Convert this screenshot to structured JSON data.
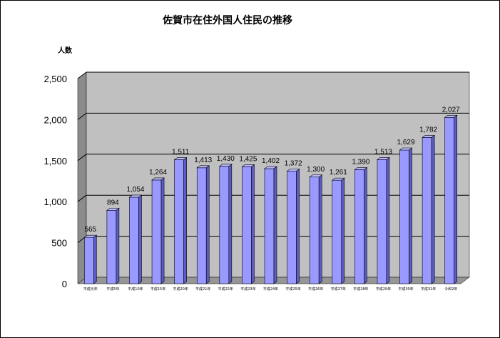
{
  "chart_data": {
    "type": "bar",
    "title": "佐賀市在住外国人住民の推移",
    "ylabel": "人数",
    "xlabel": "",
    "ylim": [
      0,
      2500
    ],
    "yticks": [
      "0",
      "500",
      "1,000",
      "1,500",
      "2,000",
      "2,500"
    ],
    "grid": true,
    "categories": [
      "平成元年",
      "平成5年",
      "平成10年",
      "平成15年",
      "平成20年",
      "平成21年",
      "平成22年",
      "平成23年",
      "平成24年",
      "平成25年",
      "平成26年",
      "平成27年",
      "平成28年",
      "平成29年",
      "平成30年",
      "平成31年",
      "令和2年"
    ],
    "values": [
      565,
      894,
      1054,
      1264,
      1511,
      1413,
      1430,
      1425,
      1402,
      1372,
      1300,
      1261,
      1390,
      1513,
      1629,
      1782,
      2027
    ],
    "value_labels": [
      "565",
      "894",
      "1,054",
      "1,264",
      "1,511",
      "1,413",
      "1,430",
      "1,425",
      "1,402",
      "1,372",
      "1,300",
      "1,261",
      "1,390",
      "1,513",
      "1,629",
      "1,782",
      "2,027"
    ],
    "colors": {
      "bar_front": "#9999ff",
      "bar_side": "#5c5cc8",
      "bar_top": "#b8b8ff",
      "wall": "#c0c0c0",
      "wall_side": "#8c8c8c",
      "floor": "#969696",
      "gridline": "#000000"
    }
  }
}
